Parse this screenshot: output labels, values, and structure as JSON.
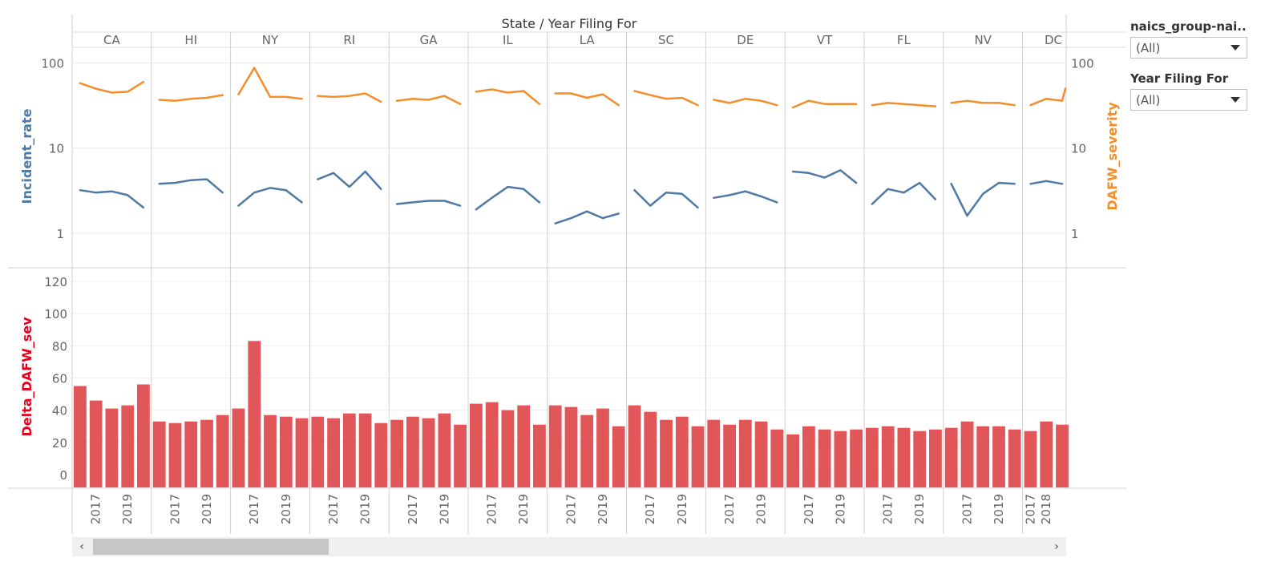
{
  "header": {
    "title": "State / Year Filing For"
  },
  "filters": [
    {
      "title": "naics_group-nai..",
      "value": "(All)"
    },
    {
      "title": "Year Filing For",
      "value": "(All)"
    }
  ],
  "scrollbar": {
    "left": "‹",
    "right": "›"
  },
  "colors": {
    "incident": "#4e79a7",
    "severity": "#f28e2b",
    "bar": "#e15759",
    "delta_title": "#e8001c"
  },
  "chart_data": [
    {
      "type": "line",
      "yscale": "log",
      "ylim": [
        0.4,
        150
      ],
      "left_ylabel": "Incident_rate",
      "right_ylabel": "DAFW_severity",
      "left_ticks": [
        "100",
        "10",
        "1"
      ],
      "right_ticks": [
        "100",
        "10",
        "1"
      ],
      "x_years": [
        "2017",
        "2019"
      ],
      "states": [
        "CA",
        "HI",
        "NY",
        "RI",
        "GA",
        "IL",
        "LA",
        "SC",
        "DE",
        "VT",
        "FL",
        "NV",
        "DC"
      ],
      "series": [
        {
          "name": "Incident_rate",
          "values": [
            [
              3.2,
              3.0,
              3.1,
              2.8,
              2.0
            ],
            [
              3.8,
              3.9,
              4.2,
              4.3,
              3.0
            ],
            [
              2.1,
              3.0,
              3.4,
              3.2,
              2.3
            ],
            [
              4.3,
              5.1,
              3.5,
              5.3,
              3.3
            ],
            [
              2.2,
              2.3,
              2.4,
              2.4,
              2.1
            ],
            [
              1.9,
              2.6,
              3.5,
              3.3,
              2.3
            ],
            [
              1.3,
              1.5,
              1.8,
              1.5,
              1.7
            ],
            [
              3.2,
              2.1,
              3.0,
              2.9,
              2.0
            ],
            [
              2.6,
              2.8,
              3.1,
              2.7,
              2.3
            ],
            [
              5.3,
              5.1,
              4.5,
              5.5,
              3.9
            ],
            [
              2.2,
              3.3,
              3.0,
              3.9,
              2.5
            ],
            [
              3.8,
              1.6,
              2.9,
              3.9,
              3.8
            ],
            [
              3.8,
              4.1,
              3.8
            ]
          ]
        },
        {
          "name": "DAFW_severity",
          "values": [
            [
              58,
              50,
              45,
              46,
              60
            ],
            [
              37,
              36,
              38,
              39,
              42
            ],
            [
              43,
              88,
              40,
              40,
              38
            ],
            [
              41,
              40,
              41,
              44,
              35
            ],
            [
              36,
              38,
              37,
              41,
              33
            ],
            [
              46,
              49,
              45,
              47,
              33
            ],
            [
              44,
              44,
              39,
              43,
              32
            ],
            [
              47,
              42,
              38,
              39,
              32
            ],
            [
              37,
              34,
              38,
              36,
              32
            ],
            [
              30,
              36,
              33,
              33,
              33
            ],
            [
              32,
              34,
              33,
              32,
              31
            ],
            [
              34,
              36,
              34,
              34,
              32
            ],
            [
              32,
              38,
              36,
              50
            ]
          ]
        }
      ]
    },
    {
      "type": "bar",
      "ylabel": "Delta_DAFW_sev",
      "ylim": [
        -8,
        128
      ],
      "yticks": [
        0,
        20,
        40,
        60,
        80,
        100,
        120
      ],
      "x_years": [
        "2017",
        "2019"
      ],
      "last_x_years": [
        "2017",
        "2018"
      ],
      "states": [
        "CA",
        "HI",
        "NY",
        "RI",
        "GA",
        "IL",
        "LA",
        "SC",
        "DE",
        "VT",
        "FL",
        "NV",
        "DC"
      ],
      "values": [
        [
          55,
          46,
          41,
          43,
          56
        ],
        [
          33,
          32,
          33,
          34,
          37
        ],
        [
          41,
          83,
          37,
          36,
          35
        ],
        [
          36,
          35,
          38,
          38,
          32
        ],
        [
          34,
          36,
          35,
          38,
          31
        ],
        [
          44,
          45,
          40,
          43,
          31
        ],
        [
          43,
          42,
          37,
          41,
          30
        ],
        [
          43,
          39,
          34,
          36,
          30
        ],
        [
          34,
          31,
          34,
          33,
          28
        ],
        [
          25,
          30,
          28,
          27,
          28
        ],
        [
          29,
          30,
          29,
          27,
          28
        ],
        [
          29,
          33,
          30,
          30,
          28
        ],
        [
          27,
          33,
          31
        ]
      ]
    }
  ]
}
